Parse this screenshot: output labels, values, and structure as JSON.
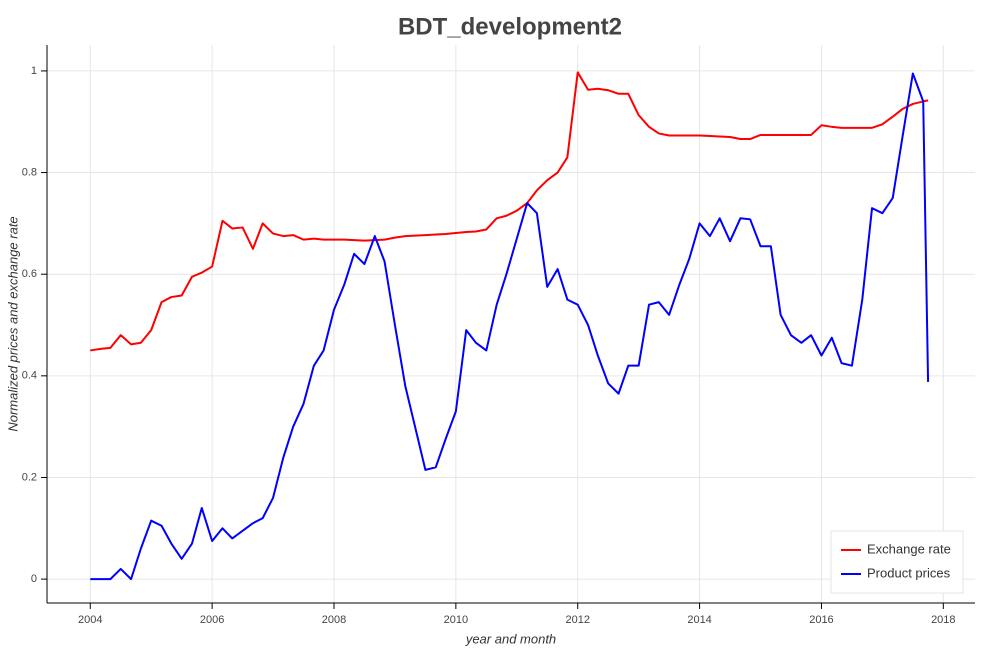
{
  "chart_data": {
    "type": "line",
    "title": "BDT_development2",
    "x_label": "year and month",
    "y_label": "Normalized prices and exchange rate",
    "x": [
      2004.0,
      2004.17,
      2004.33,
      2004.5,
      2004.67,
      2004.83,
      2005.0,
      2005.17,
      2005.33,
      2005.5,
      2005.67,
      2005.83,
      2006.0,
      2006.17,
      2006.33,
      2006.5,
      2006.67,
      2006.83,
      2007.0,
      2007.17,
      2007.33,
      2007.5,
      2007.67,
      2007.83,
      2008.0,
      2008.17,
      2008.33,
      2008.5,
      2008.67,
      2008.83,
      2009.0,
      2009.17,
      2009.33,
      2009.5,
      2009.67,
      2009.83,
      2010.0,
      2010.17,
      2010.33,
      2010.5,
      2010.67,
      2010.83,
      2011.0,
      2011.17,
      2011.33,
      2011.5,
      2011.67,
      2011.83,
      2012.0,
      2012.17,
      2012.33,
      2012.5,
      2012.67,
      2012.83,
      2013.0,
      2013.17,
      2013.33,
      2013.5,
      2013.67,
      2013.83,
      2014.0,
      2014.17,
      2014.33,
      2014.5,
      2014.67,
      2014.83,
      2015.0,
      2015.17,
      2015.33,
      2015.5,
      2015.67,
      2015.83,
      2016.0,
      2016.17,
      2016.33,
      2016.5,
      2016.67,
      2016.83,
      2017.0,
      2017.17,
      2017.33,
      2017.5,
      2017.67,
      2017.75
    ],
    "series": [
      {
        "name": "Exchange rate",
        "color": "#ff0000",
        "values": [
          0.45,
          0.453,
          0.455,
          0.48,
          0.462,
          0.465,
          0.49,
          0.545,
          0.555,
          0.558,
          0.595,
          0.603,
          0.615,
          0.705,
          0.69,
          0.692,
          0.65,
          0.7,
          0.68,
          0.675,
          0.677,
          0.668,
          0.67,
          0.668,
          0.668,
          0.668,
          0.667,
          0.666,
          0.667,
          0.668,
          0.672,
          0.675,
          0.676,
          0.677,
          0.678,
          0.679,
          0.681,
          0.683,
          0.684,
          0.688,
          0.71,
          0.715,
          0.725,
          0.74,
          0.765,
          0.785,
          0.8,
          0.83,
          0.997,
          0.963,
          0.965,
          0.962,
          0.955,
          0.955,
          0.913,
          0.89,
          0.877,
          0.873,
          0.873,
          0.873,
          0.873,
          0.872,
          0.871,
          0.87,
          0.866,
          0.866,
          0.874,
          0.874,
          0.874,
          0.874,
          0.874,
          0.874,
          0.893,
          0.89,
          0.888,
          0.888,
          0.888,
          0.888,
          0.895,
          0.91,
          0.925,
          0.935,
          0.94,
          0.942
        ]
      },
      {
        "name": "Product prices",
        "color": "#0000ff",
        "values": [
          0,
          0,
          0,
          0.02,
          0.0,
          0.06,
          0.115,
          0.105,
          0.07,
          0.04,
          0.07,
          0.14,
          0.075,
          0.1,
          0.08,
          0.095,
          0.11,
          0.12,
          0.16,
          0.24,
          0.3,
          0.345,
          0.42,
          0.45,
          0.53,
          0.58,
          0.64,
          0.62,
          0.675,
          0.625,
          0.5,
          0.38,
          0.3,
          0.215,
          0.22,
          0.275,
          0.33,
          0.49,
          0.465,
          0.45,
          0.54,
          0.6,
          0.67,
          0.74,
          0.72,
          0.575,
          0.61,
          0.55,
          0.54,
          0.5,
          0.44,
          0.385,
          0.365,
          0.42,
          0.42,
          0.54,
          0.545,
          0.52,
          0.58,
          0.63,
          0.7,
          0.675,
          0.71,
          0.665,
          0.71,
          0.708,
          0.655,
          0.655,
          0.52,
          0.48,
          0.465,
          0.48,
          0.44,
          0.475,
          0.425,
          0.42,
          0.55,
          0.73,
          0.72,
          0.75,
          0.87,
          0.995,
          0.94,
          0.388
        ]
      }
    ],
    "xlim": [
      2003.29,
      2018.52
    ],
    "xticks": [
      2004,
      2006,
      2008,
      2010,
      2012,
      2014,
      2016,
      2018
    ],
    "ylim": [
      -0.047,
      1.051
    ],
    "yticks": [
      0,
      0.2,
      0.4,
      0.6,
      0.8,
      1
    ],
    "grid": true,
    "legend": "bottom-right"
  }
}
